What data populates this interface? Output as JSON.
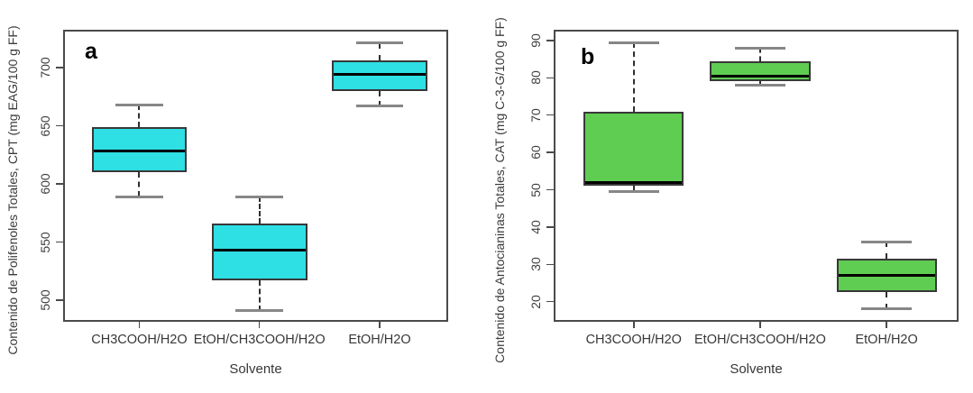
{
  "style": {
    "axis_color": "#4a4a4a",
    "whisker_color": "#2f2f2f",
    "cap_color": "#878787",
    "box_border_color": "#383838",
    "median_color": "#000000"
  },
  "chart_data": [
    {
      "type": "boxplot",
      "panel_label": "a",
      "ylabel": "Contenido de Polifenoles Totales, CPT (mg EAG/100 g FF)",
      "xlabel": "Solvente",
      "categories": [
        "CH3COOH/H2O",
        "EtOH/CH3COOH/H2O",
        "EtOH/H2O"
      ],
      "ylim": [
        483,
        731
      ],
      "yticks": [
        500,
        550,
        600,
        650,
        700
      ],
      "grid": false,
      "legend": null,
      "box_fill": "#2EDFE4",
      "boxes": [
        {
          "category": "CH3COOH/H2O",
          "whisker_low": 589,
          "q1": 610,
          "median": 628,
          "q3": 649,
          "whisker_high": 668
        },
        {
          "category": "EtOH/CH3COOH/H2O",
          "whisker_low": 491,
          "q1": 517,
          "median": 543,
          "q3": 566,
          "whisker_high": 589
        },
        {
          "category": "EtOH/H2O",
          "whisker_low": 667,
          "q1": 680,
          "median": 694,
          "q3": 706,
          "whisker_high": 721
        }
      ]
    },
    {
      "type": "boxplot",
      "panel_label": "b",
      "ylabel": "Contenido de Antocianinas Totales, CAT (mg C-3-G/100 g FF)",
      "xlabel": "Solvente",
      "categories": [
        "CH3COOH/H2O",
        "EtOH/CH3COOH/H2O",
        "EtOH/H2O"
      ],
      "ylim": [
        15.1,
        92.4
      ],
      "yticks": [
        20,
        30,
        40,
        50,
        60,
        70,
        80,
        90
      ],
      "grid": false,
      "legend": null,
      "box_fill": "#5FCD52",
      "boxes": [
        {
          "category": "CH3COOH/H2O",
          "whisker_low": 49.5,
          "q1": 51,
          "median": 52,
          "q3": 71,
          "whisker_high": 89.5
        },
        {
          "category": "EtOH/CH3COOH/H2O",
          "whisker_low": 78,
          "q1": 79,
          "median": 80.5,
          "q3": 84.5,
          "whisker_high": 88
        },
        {
          "category": "EtOH/H2O",
          "whisker_low": 18,
          "q1": 22.5,
          "median": 27,
          "q3": 31.5,
          "whisker_high": 36
        }
      ]
    }
  ]
}
